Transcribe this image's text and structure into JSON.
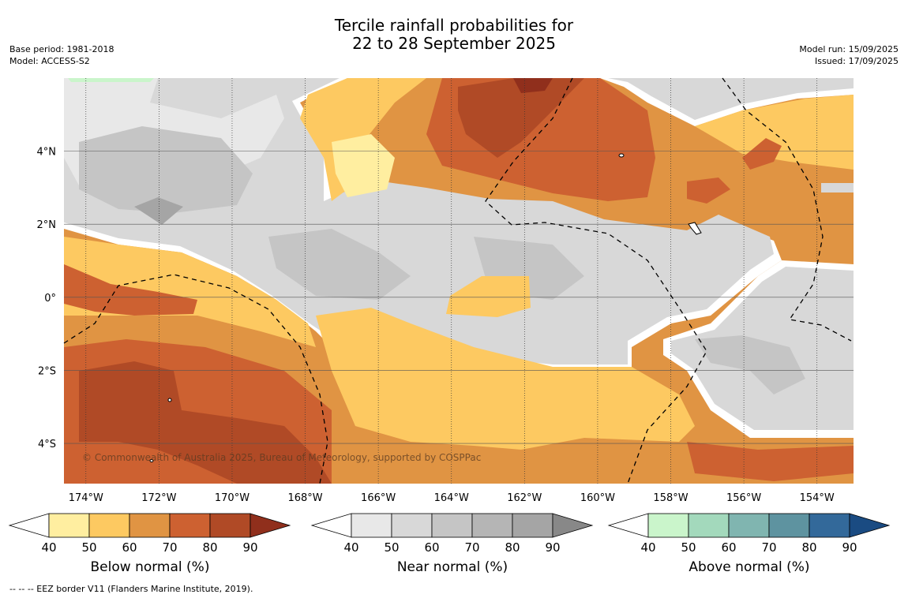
{
  "header": {
    "title_line1": "Tercile rainfall probabilities for",
    "title_line2": "22 to 28 September 2025",
    "base_period": "Base period: 1981-2018",
    "model": "Model: ACCESS-S2",
    "model_run": "Model run: 15/09/2025",
    "issued": "Issued: 17/09/2025"
  },
  "map": {
    "copyright": "© Commonwealth of Australia 2025, Bureau of Meteorology, supported by COSPPac",
    "lon_labels": [
      "174°W",
      "172°W",
      "170°W",
      "168°W",
      "166°W",
      "164°W",
      "162°W",
      "160°W",
      "158°W",
      "156°W",
      "154°W"
    ],
    "lat_labels": [
      "4°N",
      "2°N",
      "0°",
      "2°S",
      "4°S"
    ]
  },
  "colorbars": [
    {
      "id": "below",
      "title": "Below normal (%)",
      "ticks": [
        "40",
        "50",
        "60",
        "70",
        "80",
        "90"
      ],
      "colors": [
        "#ffeea0",
        "#fdc961",
        "#e09443",
        "#cd6131",
        "#b04a26",
        "#902f1c"
      ]
    },
    {
      "id": "near",
      "title": "Near normal (%)",
      "ticks": [
        "40",
        "50",
        "60",
        "70",
        "80",
        "90"
      ],
      "colors": [
        "#e8e8e8",
        "#d8d8d8",
        "#c5c5c5",
        "#b5b5b5",
        "#a5a5a5",
        "#888888"
      ]
    },
    {
      "id": "above",
      "title": "Above normal (%)",
      "ticks": [
        "40",
        "50",
        "60",
        "70",
        "80",
        "90"
      ],
      "colors": [
        "#caf5cb",
        "#a3d9bc",
        "#80b5b0",
        "#5e93a0",
        "#33699a",
        "#1a4b82"
      ]
    }
  ],
  "footer": "--  --  -- EEZ border V11 (Flanders Marine Institute, 2019).",
  "chart_data": {
    "type": "heatmap",
    "title": "Tercile rainfall probabilities for 22 to 28 September 2025",
    "x_axis": {
      "label": "",
      "range": [
        -174.6,
        -153.0
      ],
      "ticks": [
        -174,
        -172,
        -170,
        -168,
        -166,
        -164,
        -162,
        -160,
        -158,
        -156,
        -154
      ]
    },
    "y_axis": {
      "label": "",
      "range": [
        -5.1,
        6.0
      ],
      "ticks": [
        4,
        2,
        0,
        -2,
        -4
      ]
    },
    "grid": true,
    "categories": [
      "Below normal",
      "Near normal",
      "Above normal"
    ],
    "regions": [
      {
        "category": "Below normal",
        "level": "70-80",
        "area": "south-west, 2°S–5°S, 174°W–168°W"
      },
      {
        "category": "Below normal",
        "level": "80-90",
        "area": "north-central, 3°N–6°N, 163°W–160°W"
      },
      {
        "category": "Below normal",
        "level": "50-70",
        "area": "equatorial band west of 166°W, 0°–2°N"
      },
      {
        "category": "Near normal",
        "level": "50-60",
        "area": "central equatorial, 2°S–2°N, 166°W–157°W"
      },
      {
        "category": "Near normal",
        "level": "50-60",
        "area": "north-west, 2°N–6°N, 174°W–167°W"
      },
      {
        "category": "Near normal",
        "level": "50-60",
        "area": "east, 4°S–1°N, 157°W–153°W"
      },
      {
        "category": "Above normal",
        "level": "40-50",
        "area": "small patch near 5.8°N, 174°W"
      }
    ]
  }
}
